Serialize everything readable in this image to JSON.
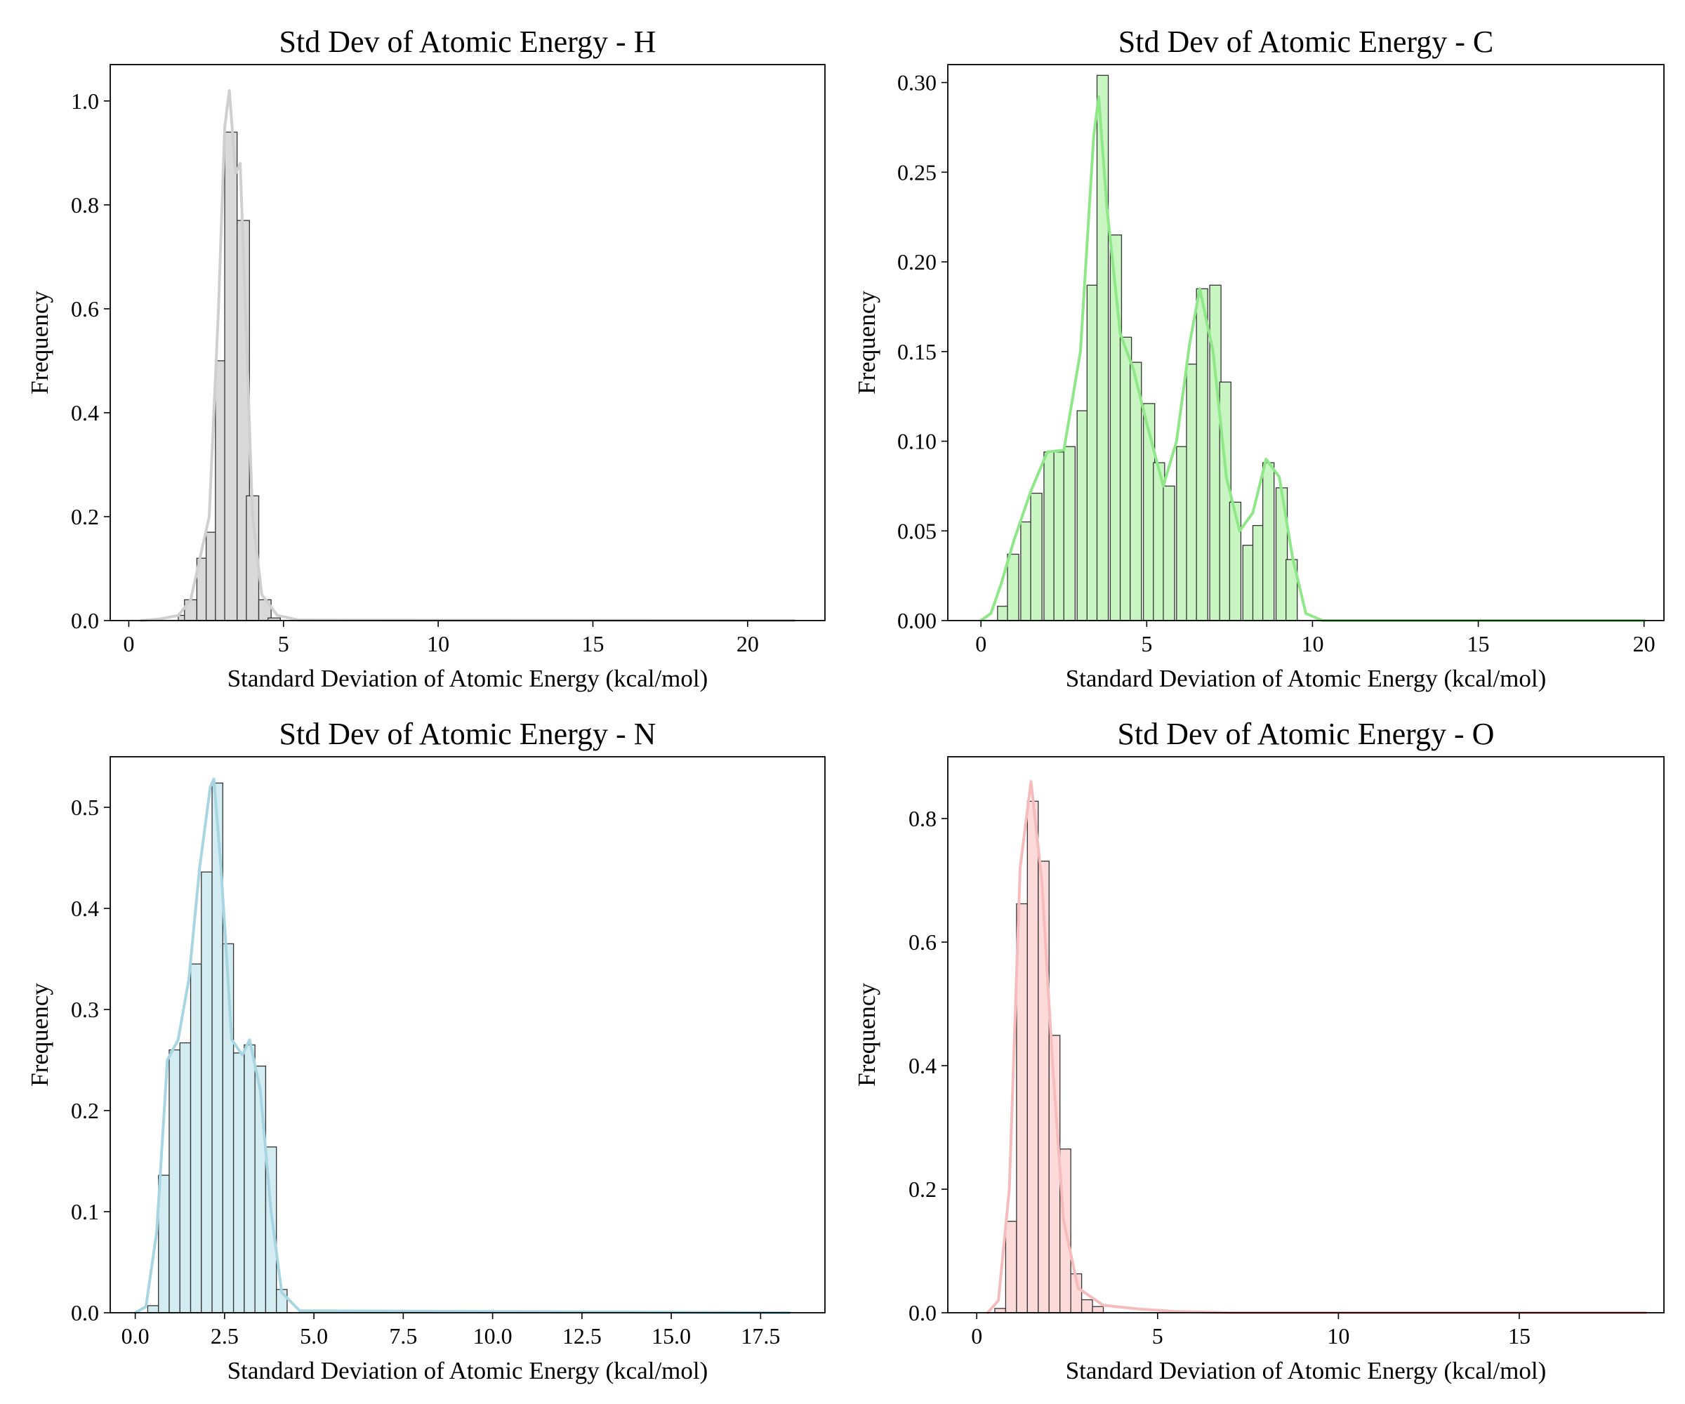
{
  "chart_data": [
    {
      "type": "bar",
      "title": "Std Dev of Atomic Energy - H",
      "xlabel": "Standard Deviation of Atomic Energy (kcal/mol)",
      "ylabel": "Frequency",
      "xlim": [
        -0.6,
        22.5
      ],
      "ylim": [
        0,
        1.07
      ],
      "xticks": [
        0,
        5,
        10,
        15,
        20
      ],
      "yticks": [
        0,
        0.2,
        0.4,
        0.6,
        0.8,
        1.0
      ],
      "tick_decimals_x": 0,
      "tick_decimals_y": 1,
      "grid": false,
      "color": "#d9d9d9",
      "kde_color": "#cfcfcf",
      "bin_width": 0.4,
      "bins": [
        [
          1.6,
          0.01
        ],
        [
          1.8,
          0.04
        ],
        [
          2.2,
          0.12
        ],
        [
          2.5,
          0.17
        ],
        [
          2.8,
          0.5
        ],
        [
          3.1,
          0.94
        ],
        [
          3.5,
          0.77
        ],
        [
          3.8,
          0.24
        ],
        [
          4.2,
          0.04
        ],
        [
          4.5,
          0.005
        ]
      ],
      "kde": [
        [
          0.4,
          0.0
        ],
        [
          1.0,
          0.003
        ],
        [
          1.6,
          0.01
        ],
        [
          2.0,
          0.04
        ],
        [
          2.3,
          0.12
        ],
        [
          2.6,
          0.2
        ],
        [
          2.9,
          0.6
        ],
        [
          3.1,
          0.95
        ],
        [
          3.25,
          1.02
        ],
        [
          3.45,
          0.86
        ],
        [
          3.6,
          0.88
        ],
        [
          3.8,
          0.55
        ],
        [
          4.0,
          0.2
        ],
        [
          4.3,
          0.05
        ],
        [
          4.8,
          0.01
        ],
        [
          5.5,
          0.001
        ],
        [
          21.5,
          0.0
        ]
      ]
    },
    {
      "type": "bar",
      "title": "Std Dev of Atomic Energy - C",
      "xlabel": "Standard Deviation of Atomic Energy (kcal/mol)",
      "ylabel": "Frequency",
      "xlim": [
        -1.0,
        20.6
      ],
      "ylim": [
        0,
        0.31
      ],
      "xticks": [
        0,
        5,
        10,
        15,
        20
      ],
      "yticks": [
        0,
        0.05,
        0.1,
        0.15,
        0.2,
        0.25,
        0.3
      ],
      "tick_decimals_x": 0,
      "tick_decimals_y": 2,
      "grid": false,
      "color": "#c8f5c2",
      "kde_color": "#8ee887",
      "bin_width": 0.34,
      "bins": [
        [
          0.5,
          0.008
        ],
        [
          0.8,
          0.037
        ],
        [
          1.2,
          0.055
        ],
        [
          1.5,
          0.071
        ],
        [
          1.9,
          0.094
        ],
        [
          2.2,
          0.094
        ],
        [
          2.5,
          0.097
        ],
        [
          2.9,
          0.117
        ],
        [
          3.2,
          0.187
        ],
        [
          3.5,
          0.304
        ],
        [
          3.9,
          0.215
        ],
        [
          4.2,
          0.158
        ],
        [
          4.5,
          0.144
        ],
        [
          4.9,
          0.121
        ],
        [
          5.2,
          0.088
        ],
        [
          5.5,
          0.075
        ],
        [
          5.9,
          0.097
        ],
        [
          6.2,
          0.143
        ],
        [
          6.5,
          0.185
        ],
        [
          6.9,
          0.187
        ],
        [
          7.2,
          0.133
        ],
        [
          7.5,
          0.066
        ],
        [
          7.9,
          0.042
        ],
        [
          8.2,
          0.053
        ],
        [
          8.5,
          0.088
        ],
        [
          8.9,
          0.074
        ],
        [
          9.2,
          0.034
        ]
      ],
      "kde": [
        [
          0.0,
          0.0
        ],
        [
          0.3,
          0.004
        ],
        [
          0.6,
          0.02
        ],
        [
          1.0,
          0.045
        ],
        [
          1.5,
          0.072
        ],
        [
          2.0,
          0.094
        ],
        [
          2.5,
          0.095
        ],
        [
          3.0,
          0.15
        ],
        [
          3.4,
          0.27
        ],
        [
          3.55,
          0.292
        ],
        [
          3.8,
          0.23
        ],
        [
          4.2,
          0.16
        ],
        [
          4.6,
          0.14
        ],
        [
          5.0,
          0.11
        ],
        [
          5.5,
          0.075
        ],
        [
          5.9,
          0.1
        ],
        [
          6.3,
          0.155
        ],
        [
          6.6,
          0.185
        ],
        [
          7.0,
          0.15
        ],
        [
          7.4,
          0.08
        ],
        [
          7.8,
          0.05
        ],
        [
          8.2,
          0.06
        ],
        [
          8.6,
          0.09
        ],
        [
          9.0,
          0.08
        ],
        [
          9.4,
          0.035
        ],
        [
          9.8,
          0.004
        ],
        [
          10.3,
          0.0
        ],
        [
          20.0,
          0.0
        ]
      ]
    },
    {
      "type": "bar",
      "title": "Std Dev of Atomic Energy - N",
      "xlabel": "Standard Deviation of Atomic Energy (kcal/mol)",
      "ylabel": "Frequency",
      "xlim": [
        -0.7,
        19.3
      ],
      "ylim": [
        0,
        0.55
      ],
      "xticks": [
        0.0,
        2.5,
        5.0,
        7.5,
        10.0,
        12.5,
        15.0,
        17.5
      ],
      "yticks": [
        0,
        0.1,
        0.2,
        0.3,
        0.4,
        0.5
      ],
      "tick_decimals_x": 1,
      "tick_decimals_y": 1,
      "grid": false,
      "color": "#d2ecf2",
      "kde_color": "#a7d5e2",
      "bin_width": 0.3,
      "bins": [
        [
          0.35,
          0.007
        ],
        [
          0.65,
          0.136
        ],
        [
          0.95,
          0.26
        ],
        [
          1.25,
          0.267
        ],
        [
          1.55,
          0.345
        ],
        [
          1.85,
          0.436
        ],
        [
          2.15,
          0.524
        ],
        [
          2.45,
          0.365
        ],
        [
          2.75,
          0.257
        ],
        [
          3.05,
          0.265
        ],
        [
          3.35,
          0.244
        ],
        [
          3.65,
          0.164
        ],
        [
          3.95,
          0.023
        ]
      ],
      "kde": [
        [
          0.0,
          0.0
        ],
        [
          0.3,
          0.006
        ],
        [
          0.6,
          0.08
        ],
        [
          0.9,
          0.25
        ],
        [
          1.2,
          0.27
        ],
        [
          1.5,
          0.33
        ],
        [
          1.8,
          0.44
        ],
        [
          2.1,
          0.52
        ],
        [
          2.2,
          0.528
        ],
        [
          2.4,
          0.44
        ],
        [
          2.7,
          0.27
        ],
        [
          3.0,
          0.255
        ],
        [
          3.2,
          0.27
        ],
        [
          3.5,
          0.22
        ],
        [
          3.8,
          0.1
        ],
        [
          4.1,
          0.02
        ],
        [
          4.6,
          0.002
        ],
        [
          18.3,
          0.0
        ]
      ]
    },
    {
      "type": "bar",
      "title": "Std Dev of Atomic Energy - O",
      "xlabel": "Standard Deviation of Atomic Energy (kcal/mol)",
      "ylabel": "Frequency",
      "xlim": [
        -0.8,
        19.0
      ],
      "ylim": [
        0,
        0.9
      ],
      "xticks": [
        0,
        5,
        10,
        15
      ],
      "yticks": [
        0,
        0.2,
        0.4,
        0.6,
        0.8
      ],
      "tick_decimals_x": 0,
      "tick_decimals_y": 1,
      "grid": false,
      "color": "#fcdada",
      "kde_color": "#f6bcbc",
      "bin_width": 0.3,
      "bins": [
        [
          0.5,
          0.007
        ],
        [
          0.8,
          0.148
        ],
        [
          1.1,
          0.662
        ],
        [
          1.4,
          0.828
        ],
        [
          1.7,
          0.731
        ],
        [
          2.0,
          0.449
        ],
        [
          2.3,
          0.265
        ],
        [
          2.6,
          0.063
        ],
        [
          2.9,
          0.021
        ],
        [
          3.2,
          0.01
        ]
      ],
      "kde": [
        [
          0.3,
          0.0
        ],
        [
          0.6,
          0.02
        ],
        [
          0.9,
          0.2
        ],
        [
          1.2,
          0.72
        ],
        [
          1.5,
          0.86
        ],
        [
          1.8,
          0.7
        ],
        [
          2.1,
          0.4
        ],
        [
          2.4,
          0.15
        ],
        [
          2.8,
          0.04
        ],
        [
          3.5,
          0.012
        ],
        [
          4.5,
          0.006
        ],
        [
          5.5,
          0.002
        ],
        [
          7.0,
          0.0
        ],
        [
          18.5,
          0.0
        ]
      ]
    }
  ]
}
